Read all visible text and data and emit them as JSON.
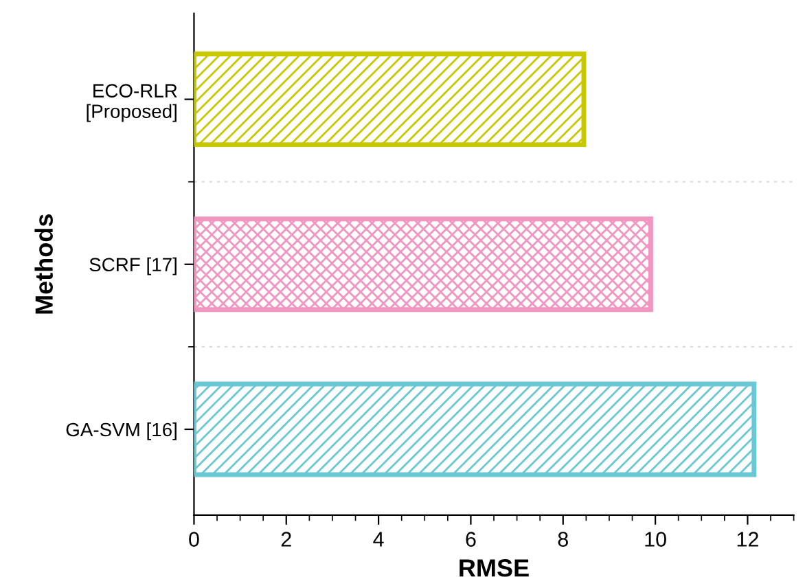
{
  "chart_data": {
    "type": "bar",
    "orientation": "horizontal",
    "xlabel": "RMSE",
    "ylabel": "Methods",
    "categories": [
      "ECO-RLR\n[Proposed]",
      "SCRF [17]",
      "GA-SVM [16]"
    ],
    "values": [
      8.45,
      9.9,
      12.14
    ],
    "colors": [
      "#c8c800",
      "#f096c0",
      "#6ac8d4"
    ],
    "xlim": [
      0,
      13
    ],
    "xticks": [
      0,
      2,
      4,
      6,
      8,
      10,
      12
    ],
    "grid": "y"
  }
}
